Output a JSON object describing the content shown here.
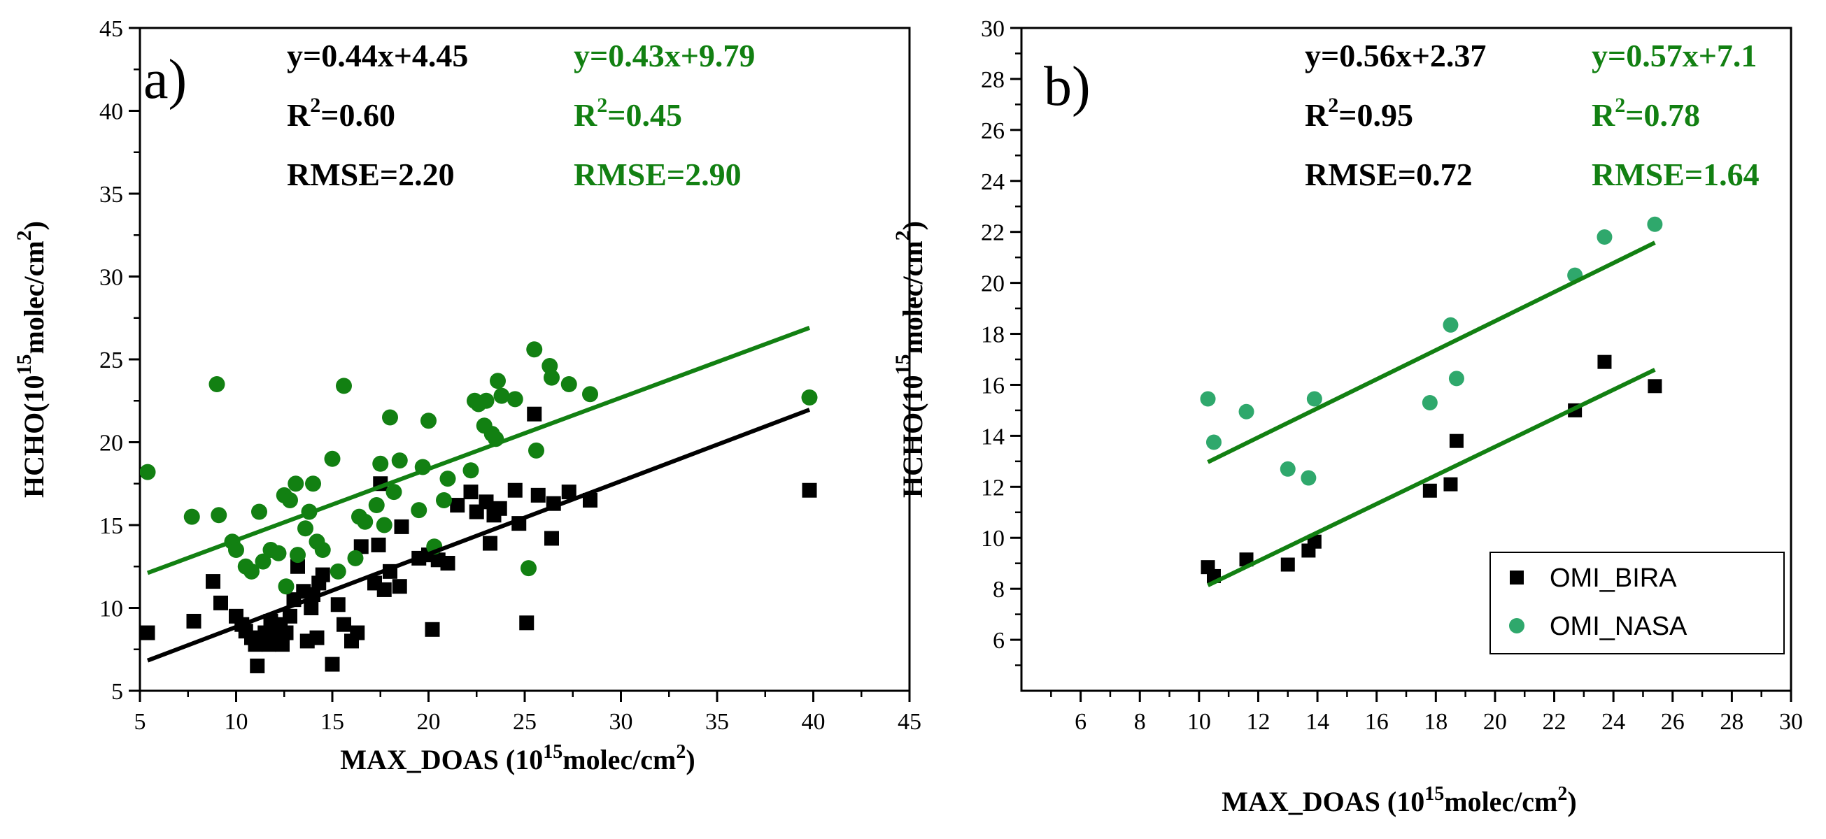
{
  "colors": {
    "bira": "#000000",
    "nasa_a": "#128012",
    "nasa_b": "#2fa86c",
    "fit_b": "#128012",
    "annot_green": "#128012"
  },
  "chart_data": [
    {
      "type": "scatter",
      "panel_label": "a)",
      "xlabel": {
        "main": "MAX_DOAS (10",
        "sup": "15",
        "tail": "molec/cm",
        "sup2": "2",
        "end": ")"
      },
      "ylabel": {
        "main": "HCHO(10",
        "sup": "15",
        "tail": "molec/cm",
        "sup2": "2",
        "end": ")"
      },
      "xlim": [
        5,
        45
      ],
      "ylim": [
        5,
        45
      ],
      "xticks": [
        "5",
        "10",
        "15",
        "20",
        "25",
        "30",
        "35",
        "40",
        "45"
      ],
      "yticks": [
        "5",
        "10",
        "15",
        "20",
        "25",
        "30",
        "35",
        "40",
        "45"
      ],
      "annotations": {
        "bira": {
          "eq": "y=0.44x+4.45",
          "r2_pre": "R",
          "r2_sup": "2",
          "r2_val": "=0.60",
          "rmse": "RMSE=2.20"
        },
        "nasa": {
          "eq": "y=0.43x+9.79",
          "r2_pre": "R",
          "r2_sup": "2",
          "r2_val": "=0.45",
          "rmse": "RMSE=2.90"
        }
      },
      "series": [
        {
          "name": "OMI_BIRA",
          "marker": "square",
          "fit": {
            "slope": 0.44,
            "intercept": 4.45,
            "x": [
              5.4,
              39.8
            ]
          },
          "points": [
            [
              5.4,
              8.5
            ],
            [
              7.8,
              9.2
            ],
            [
              8.8,
              11.6
            ],
            [
              9.2,
              10.3
            ],
            [
              10.0,
              9.5
            ],
            [
              10.3,
              9.0
            ],
            [
              10.5,
              8.6
            ],
            [
              10.8,
              8.2
            ],
            [
              11.0,
              7.8
            ],
            [
              11.1,
              6.5
            ],
            [
              11.3,
              8.0
            ],
            [
              11.5,
              8.5
            ],
            [
              11.7,
              7.8
            ],
            [
              11.8,
              9.2
            ],
            [
              12.0,
              8.0
            ],
            [
              12.2,
              8.6
            ],
            [
              12.3,
              9.0
            ],
            [
              12.4,
              7.8
            ],
            [
              12.6,
              8.5
            ],
            [
              12.8,
              9.5
            ],
            [
              13.0,
              10.5
            ],
            [
              13.2,
              12.5
            ],
            [
              13.5,
              11.0
            ],
            [
              13.7,
              8.0
            ],
            [
              13.9,
              10.0
            ],
            [
              14.0,
              10.8
            ],
            [
              14.2,
              8.2
            ],
            [
              14.3,
              11.5
            ],
            [
              14.5,
              12.0
            ],
            [
              15.0,
              6.6
            ],
            [
              15.3,
              10.2
            ],
            [
              15.6,
              9.0
            ],
            [
              16.0,
              8.0
            ],
            [
              16.3,
              8.5
            ],
            [
              16.5,
              13.7
            ],
            [
              17.2,
              11.5
            ],
            [
              17.4,
              13.8
            ],
            [
              17.5,
              17.5
            ],
            [
              17.7,
              11.1
            ],
            [
              18.0,
              12.2
            ],
            [
              18.5,
              11.3
            ],
            [
              18.6,
              14.9
            ],
            [
              19.5,
              13.0
            ],
            [
              20.0,
              13.2
            ],
            [
              20.2,
              8.7
            ],
            [
              20.5,
              12.9
            ],
            [
              21.0,
              12.7
            ],
            [
              21.5,
              16.2
            ],
            [
              22.2,
              17.0
            ],
            [
              22.5,
              15.8
            ],
            [
              23.0,
              16.4
            ],
            [
              23.2,
              13.9
            ],
            [
              23.4,
              15.6
            ],
            [
              23.7,
              16.0
            ],
            [
              24.5,
              17.1
            ],
            [
              24.7,
              15.1
            ],
            [
              25.1,
              9.1
            ],
            [
              25.5,
              21.7
            ],
            [
              25.7,
              16.8
            ],
            [
              26.4,
              14.2
            ],
            [
              26.5,
              16.3
            ],
            [
              27.3,
              17.0
            ],
            [
              28.4,
              16.5
            ],
            [
              39.8,
              17.1
            ]
          ]
        },
        {
          "name": "OMI_NASA",
          "marker": "circle",
          "fit": {
            "slope": 0.43,
            "intercept": 9.79,
            "x": [
              5.4,
              39.8
            ]
          },
          "points": [
            [
              5.4,
              18.2
            ],
            [
              7.7,
              15.5
            ],
            [
              9.0,
              23.5
            ],
            [
              9.1,
              15.6
            ],
            [
              9.8,
              14.0
            ],
            [
              10.0,
              13.5
            ],
            [
              10.5,
              12.5
            ],
            [
              10.8,
              12.2
            ],
            [
              11.2,
              15.8
            ],
            [
              11.4,
              12.8
            ],
            [
              11.8,
              13.5
            ],
            [
              12.2,
              13.3
            ],
            [
              12.5,
              16.8
            ],
            [
              12.6,
              11.3
            ],
            [
              12.8,
              16.5
            ],
            [
              13.1,
              17.5
            ],
            [
              13.2,
              13.2
            ],
            [
              13.6,
              14.8
            ],
            [
              13.8,
              15.8
            ],
            [
              14.0,
              17.5
            ],
            [
              14.2,
              14.0
            ],
            [
              14.5,
              13.5
            ],
            [
              15.0,
              19.0
            ],
            [
              15.3,
              12.2
            ],
            [
              15.6,
              23.4
            ],
            [
              16.2,
              13.0
            ],
            [
              16.4,
              15.5
            ],
            [
              16.7,
              15.2
            ],
            [
              17.3,
              16.2
            ],
            [
              17.5,
              18.7
            ],
            [
              17.7,
              15.0
            ],
            [
              18.0,
              21.5
            ],
            [
              18.2,
              17.0
            ],
            [
              18.5,
              18.9
            ],
            [
              19.5,
              15.9
            ],
            [
              19.7,
              18.5
            ],
            [
              20.0,
              21.3
            ],
            [
              20.3,
              13.7
            ],
            [
              20.8,
              16.5
            ],
            [
              21.0,
              17.8
            ],
            [
              22.2,
              18.3
            ],
            [
              22.4,
              22.5
            ],
            [
              22.6,
              22.3
            ],
            [
              22.9,
              21.0
            ],
            [
              23.0,
              22.5
            ],
            [
              23.3,
              20.5
            ],
            [
              23.5,
              20.2
            ],
            [
              23.6,
              23.7
            ],
            [
              23.8,
              22.8
            ],
            [
              24.5,
              22.6
            ],
            [
              25.2,
              12.4
            ],
            [
              25.5,
              25.6
            ],
            [
              25.6,
              19.5
            ],
            [
              26.3,
              24.6
            ],
            [
              26.4,
              23.9
            ],
            [
              27.3,
              23.5
            ],
            [
              28.4,
              22.9
            ],
            [
              39.8,
              22.7
            ]
          ]
        }
      ]
    },
    {
      "type": "scatter",
      "panel_label": "b)",
      "xlabel": {
        "main": "MAX_DOAS (10",
        "sup": "15",
        "tail": "molec/cm",
        "sup2": "2",
        "end": ")"
      },
      "ylabel": {
        "main": "HCHO(10",
        "sup": "15",
        "tail": "molec/cm",
        "sup2": "2",
        "end": ")"
      },
      "xlim": [
        4,
        30
      ],
      "ylim": [
        4,
        30
      ],
      "xticks": [
        "6",
        "8",
        "10",
        "12",
        "14",
        "16",
        "18",
        "20",
        "22",
        "24",
        "26",
        "28",
        "30"
      ],
      "yticks": [
        "6",
        "8",
        "10",
        "12",
        "14",
        "16",
        "18",
        "20",
        "22",
        "24",
        "26",
        "28",
        "30"
      ],
      "annotations": {
        "bira": {
          "eq": "y=0.56x+2.37",
          "r2_pre": "R",
          "r2_sup": "2",
          "r2_val": "=0.95",
          "rmse": "RMSE=0.72"
        },
        "nasa": {
          "eq": "y=0.57x+7.1",
          "r2_pre": "R",
          "r2_sup": "2",
          "r2_val": "=0.78",
          "rmse": "RMSE=1.64"
        }
      },
      "legend": {
        "position": "bottom-right",
        "items": [
          "OMI_BIRA",
          "OMI_NASA"
        ]
      },
      "series": [
        {
          "name": "OMI_BIRA",
          "marker": "square",
          "fit": {
            "slope": 0.56,
            "intercept": 2.37,
            "x": [
              10.3,
              25.4
            ]
          },
          "points": [
            [
              10.3,
              8.85
            ],
            [
              10.5,
              8.5
            ],
            [
              11.6,
              9.15
            ],
            [
              13.0,
              8.95
            ],
            [
              13.7,
              9.5
            ],
            [
              13.9,
              9.85
            ],
            [
              17.8,
              11.85
            ],
            [
              18.5,
              12.1
            ],
            [
              18.7,
              13.8
            ],
            [
              22.7,
              15.0
            ],
            [
              23.7,
              16.9
            ],
            [
              25.4,
              15.95
            ]
          ]
        },
        {
          "name": "OMI_NASA",
          "marker": "circle",
          "fit": {
            "slope": 0.57,
            "intercept": 7.1,
            "x": [
              10.3,
              25.4
            ]
          },
          "points": [
            [
              10.3,
              15.45
            ],
            [
              10.5,
              13.75
            ],
            [
              11.6,
              14.95
            ],
            [
              13.0,
              12.7
            ],
            [
              13.7,
              12.35
            ],
            [
              13.9,
              15.45
            ],
            [
              17.8,
              15.3
            ],
            [
              18.5,
              18.35
            ],
            [
              18.7,
              16.25
            ],
            [
              22.7,
              20.3
            ],
            [
              23.7,
              21.8
            ],
            [
              25.4,
              22.3
            ]
          ]
        }
      ]
    }
  ]
}
